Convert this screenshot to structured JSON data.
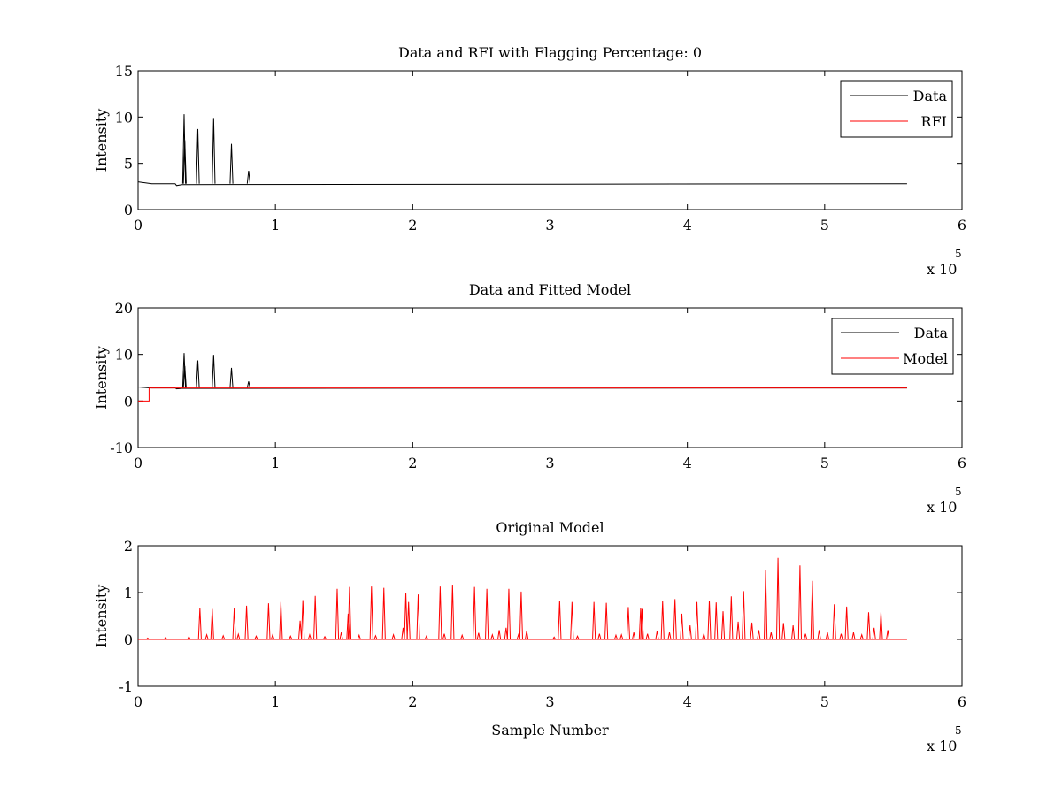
{
  "chart_data": [
    {
      "type": "line",
      "title": "Data and RFI with Flagging Percentage: 0",
      "xlabel": "",
      "ylabel": "Intensity",
      "xlim": [
        0,
        600000
      ],
      "ylim": [
        0,
        15
      ],
      "x_ticks": [
        0,
        1,
        2,
        3,
        4,
        5,
        6
      ],
      "y_ticks": [
        0,
        5,
        10,
        15
      ],
      "x_exponent_label": "x 10",
      "x_exponent": "5",
      "grid": false,
      "legend": "top-right",
      "baseline": 2.8,
      "series": [
        {
          "name": "Data",
          "color": "#000000",
          "spikes": [
            [
              33500,
              10.3
            ],
            [
              34000,
              7.5
            ],
            [
              43500,
              8.7
            ],
            [
              55000,
              9.9
            ],
            [
              68000,
              7.1
            ],
            [
              80500,
              4.2
            ]
          ]
        },
        {
          "name": "RFI",
          "color": "#ff0000",
          "spikes": []
        }
      ]
    },
    {
      "type": "line",
      "title": "Data and Fitted Model",
      "xlabel": "",
      "ylabel": "Intensity",
      "xlim": [
        0,
        600000
      ],
      "ylim": [
        -10,
        20
      ],
      "x_ticks": [
        0,
        1,
        2,
        3,
        4,
        5,
        6
      ],
      "y_ticks": [
        -10,
        0,
        10,
        20
      ],
      "x_exponent_label": "x 10",
      "x_exponent": "5",
      "grid": false,
      "legend": "top-right",
      "baseline": 2.8,
      "series": [
        {
          "name": "Data",
          "color": "#000000",
          "spikes": [
            [
              33500,
              10.3
            ],
            [
              34000,
              7.5
            ],
            [
              43500,
              8.7
            ],
            [
              55000,
              9.9
            ],
            [
              68000,
              7.1
            ],
            [
              80500,
              4.2
            ]
          ]
        },
        {
          "name": "Model",
          "color": "#ff0000",
          "level": 2.8,
          "step_until": 8000,
          "step_value": 0
        }
      ]
    },
    {
      "type": "line",
      "title": "Original Model",
      "xlabel": "Sample Number",
      "ylabel": "Intensity",
      "xlim": [
        0,
        600000
      ],
      "ylim": [
        -1,
        2
      ],
      "x_ticks": [
        0,
        1,
        2,
        3,
        4,
        5,
        6
      ],
      "y_ticks": [
        -1,
        0,
        1,
        2
      ],
      "x_exponent_label": "x 10",
      "x_exponent": "5",
      "grid": false,
      "series": [
        {
          "name": "",
          "color": "#ff0000",
          "spikes": [
            [
              45000,
              0.67
            ],
            [
              54000,
              0.65
            ],
            [
              70000,
              0.66
            ],
            [
              79000,
              0.72
            ],
            [
              95000,
              0.77
            ],
            [
              104000,
              0.8
            ],
            [
              120000,
              0.84
            ],
            [
              129000,
              0.93
            ],
            [
              145000,
              1.08
            ],
            [
              154000,
              1.12
            ],
            [
              170000,
              1.13
            ],
            [
              179000,
              1.1
            ],
            [
              195000,
              1.0
            ],
            [
              204000,
              0.96
            ],
            [
              220000,
              1.13
            ],
            [
              229000,
              1.17
            ],
            [
              245000,
              1.12
            ],
            [
              254000,
              1.08
            ],
            [
              270000,
              1.08
            ],
            [
              279000,
              1.02
            ],
            [
              307000,
              0.83
            ],
            [
              316000,
              0.8
            ],
            [
              332000,
              0.8
            ],
            [
              341000,
              0.78
            ],
            [
              357000,
              0.69
            ],
            [
              366000,
              0.68
            ],
            [
              382000,
              0.82
            ],
            [
              391000,
              0.86
            ],
            [
              407000,
              0.8
            ],
            [
              416000,
              0.83
            ],
            [
              421000,
              0.79
            ],
            [
              432000,
              0.92
            ],
            [
              441000,
              1.03
            ],
            [
              457000,
              1.48
            ],
            [
              466000,
              1.74
            ],
            [
              482000,
              1.58
            ],
            [
              491000,
              1.25
            ],
            [
              507000,
              0.75
            ],
            [
              516000,
              0.7
            ],
            [
              532000,
              0.58
            ],
            [
              541000,
              0.58
            ],
            [
              7000,
              0.03
            ],
            [
              20000,
              0.04
            ],
            [
              37000,
              0.06
            ],
            [
              50000,
              0.1
            ],
            [
              62000,
              0.08
            ],
            [
              73000,
              0.11
            ],
            [
              86000,
              0.07
            ],
            [
              98000,
              0.1
            ],
            [
              111000,
              0.07
            ],
            [
              118000,
              0.4
            ],
            [
              125000,
              0.1
            ],
            [
              136000,
              0.06
            ],
            [
              148000,
              0.15
            ],
            [
              153000,
              0.55
            ],
            [
              161000,
              0.09
            ],
            [
              173000,
              0.08
            ],
            [
              186000,
              0.1
            ],
            [
              193000,
              0.25
            ],
            [
              197000,
              0.8
            ],
            [
              210000,
              0.07
            ],
            [
              223000,
              0.12
            ],
            [
              236000,
              0.09
            ],
            [
              248000,
              0.14
            ],
            [
              258000,
              0.1
            ],
            [
              263000,
              0.2
            ],
            [
              268000,
              0.25
            ],
            [
              277000,
              0.1
            ],
            [
              283000,
              0.18
            ],
            [
              303000,
              0.05
            ],
            [
              320000,
              0.07
            ],
            [
              336000,
              0.12
            ],
            [
              348000,
              0.09
            ],
            [
              352000,
              0.1
            ],
            [
              361000,
              0.15
            ],
            [
              367000,
              0.65
            ],
            [
              371000,
              0.12
            ],
            [
              378000,
              0.18
            ],
            [
              387000,
              0.15
            ],
            [
              396000,
              0.55
            ],
            [
              402000,
              0.3
            ],
            [
              412000,
              0.12
            ],
            [
              426000,
              0.6
            ],
            [
              437000,
              0.38
            ],
            [
              447000,
              0.36
            ],
            [
              452000,
              0.2
            ],
            [
              461000,
              0.15
            ],
            [
              470000,
              0.35
            ],
            [
              477000,
              0.3
            ],
            [
              486000,
              0.12
            ],
            [
              496000,
              0.2
            ],
            [
              502000,
              0.15
            ],
            [
              512000,
              0.12
            ],
            [
              521000,
              0.15
            ],
            [
              527000,
              0.1
            ],
            [
              536000,
              0.25
            ],
            [
              546000,
              0.2
            ]
          ]
        }
      ]
    }
  ]
}
